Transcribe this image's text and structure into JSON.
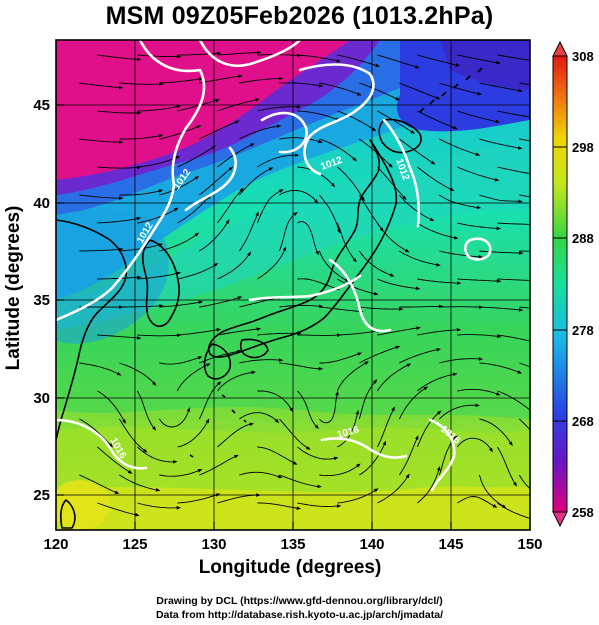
{
  "title": "MSM 09Z05Feb2026 (1013.2hPa)",
  "x_axis": {
    "label": "Longitude (degrees)",
    "range": [
      120,
      150
    ],
    "ticks": [
      "120",
      "125",
      "130",
      "135",
      "140",
      "145",
      "150"
    ]
  },
  "y_axis": {
    "label": "Latitude  (degrees)",
    "range": [
      22.4,
      47.6
    ],
    "ticks": [
      "25",
      "30",
      "35",
      "40",
      "45"
    ]
  },
  "colorbar": {
    "min": 258,
    "max": 308,
    "labels": [
      "308",
      "298",
      "288",
      "278",
      "268",
      "258"
    ],
    "palette": [
      "#e0007a",
      "#6a15c8",
      "#2846e6",
      "#1ab8e8",
      "#18e09c",
      "#35d445",
      "#c4e81c",
      "#f0d400",
      "#f06a10",
      "#e01a10"
    ]
  },
  "contour_labels": [
    "1012",
    "1012",
    "1012",
    "1012",
    "1016",
    "1016",
    "1016"
  ],
  "credits": {
    "drawing": "Drawing by DCL (https://www.gfd-dennou.org/library/dcl/)",
    "data": "Data from http://database.rish.kyoto-u.ac.jp/arch/jmadata/"
  }
}
